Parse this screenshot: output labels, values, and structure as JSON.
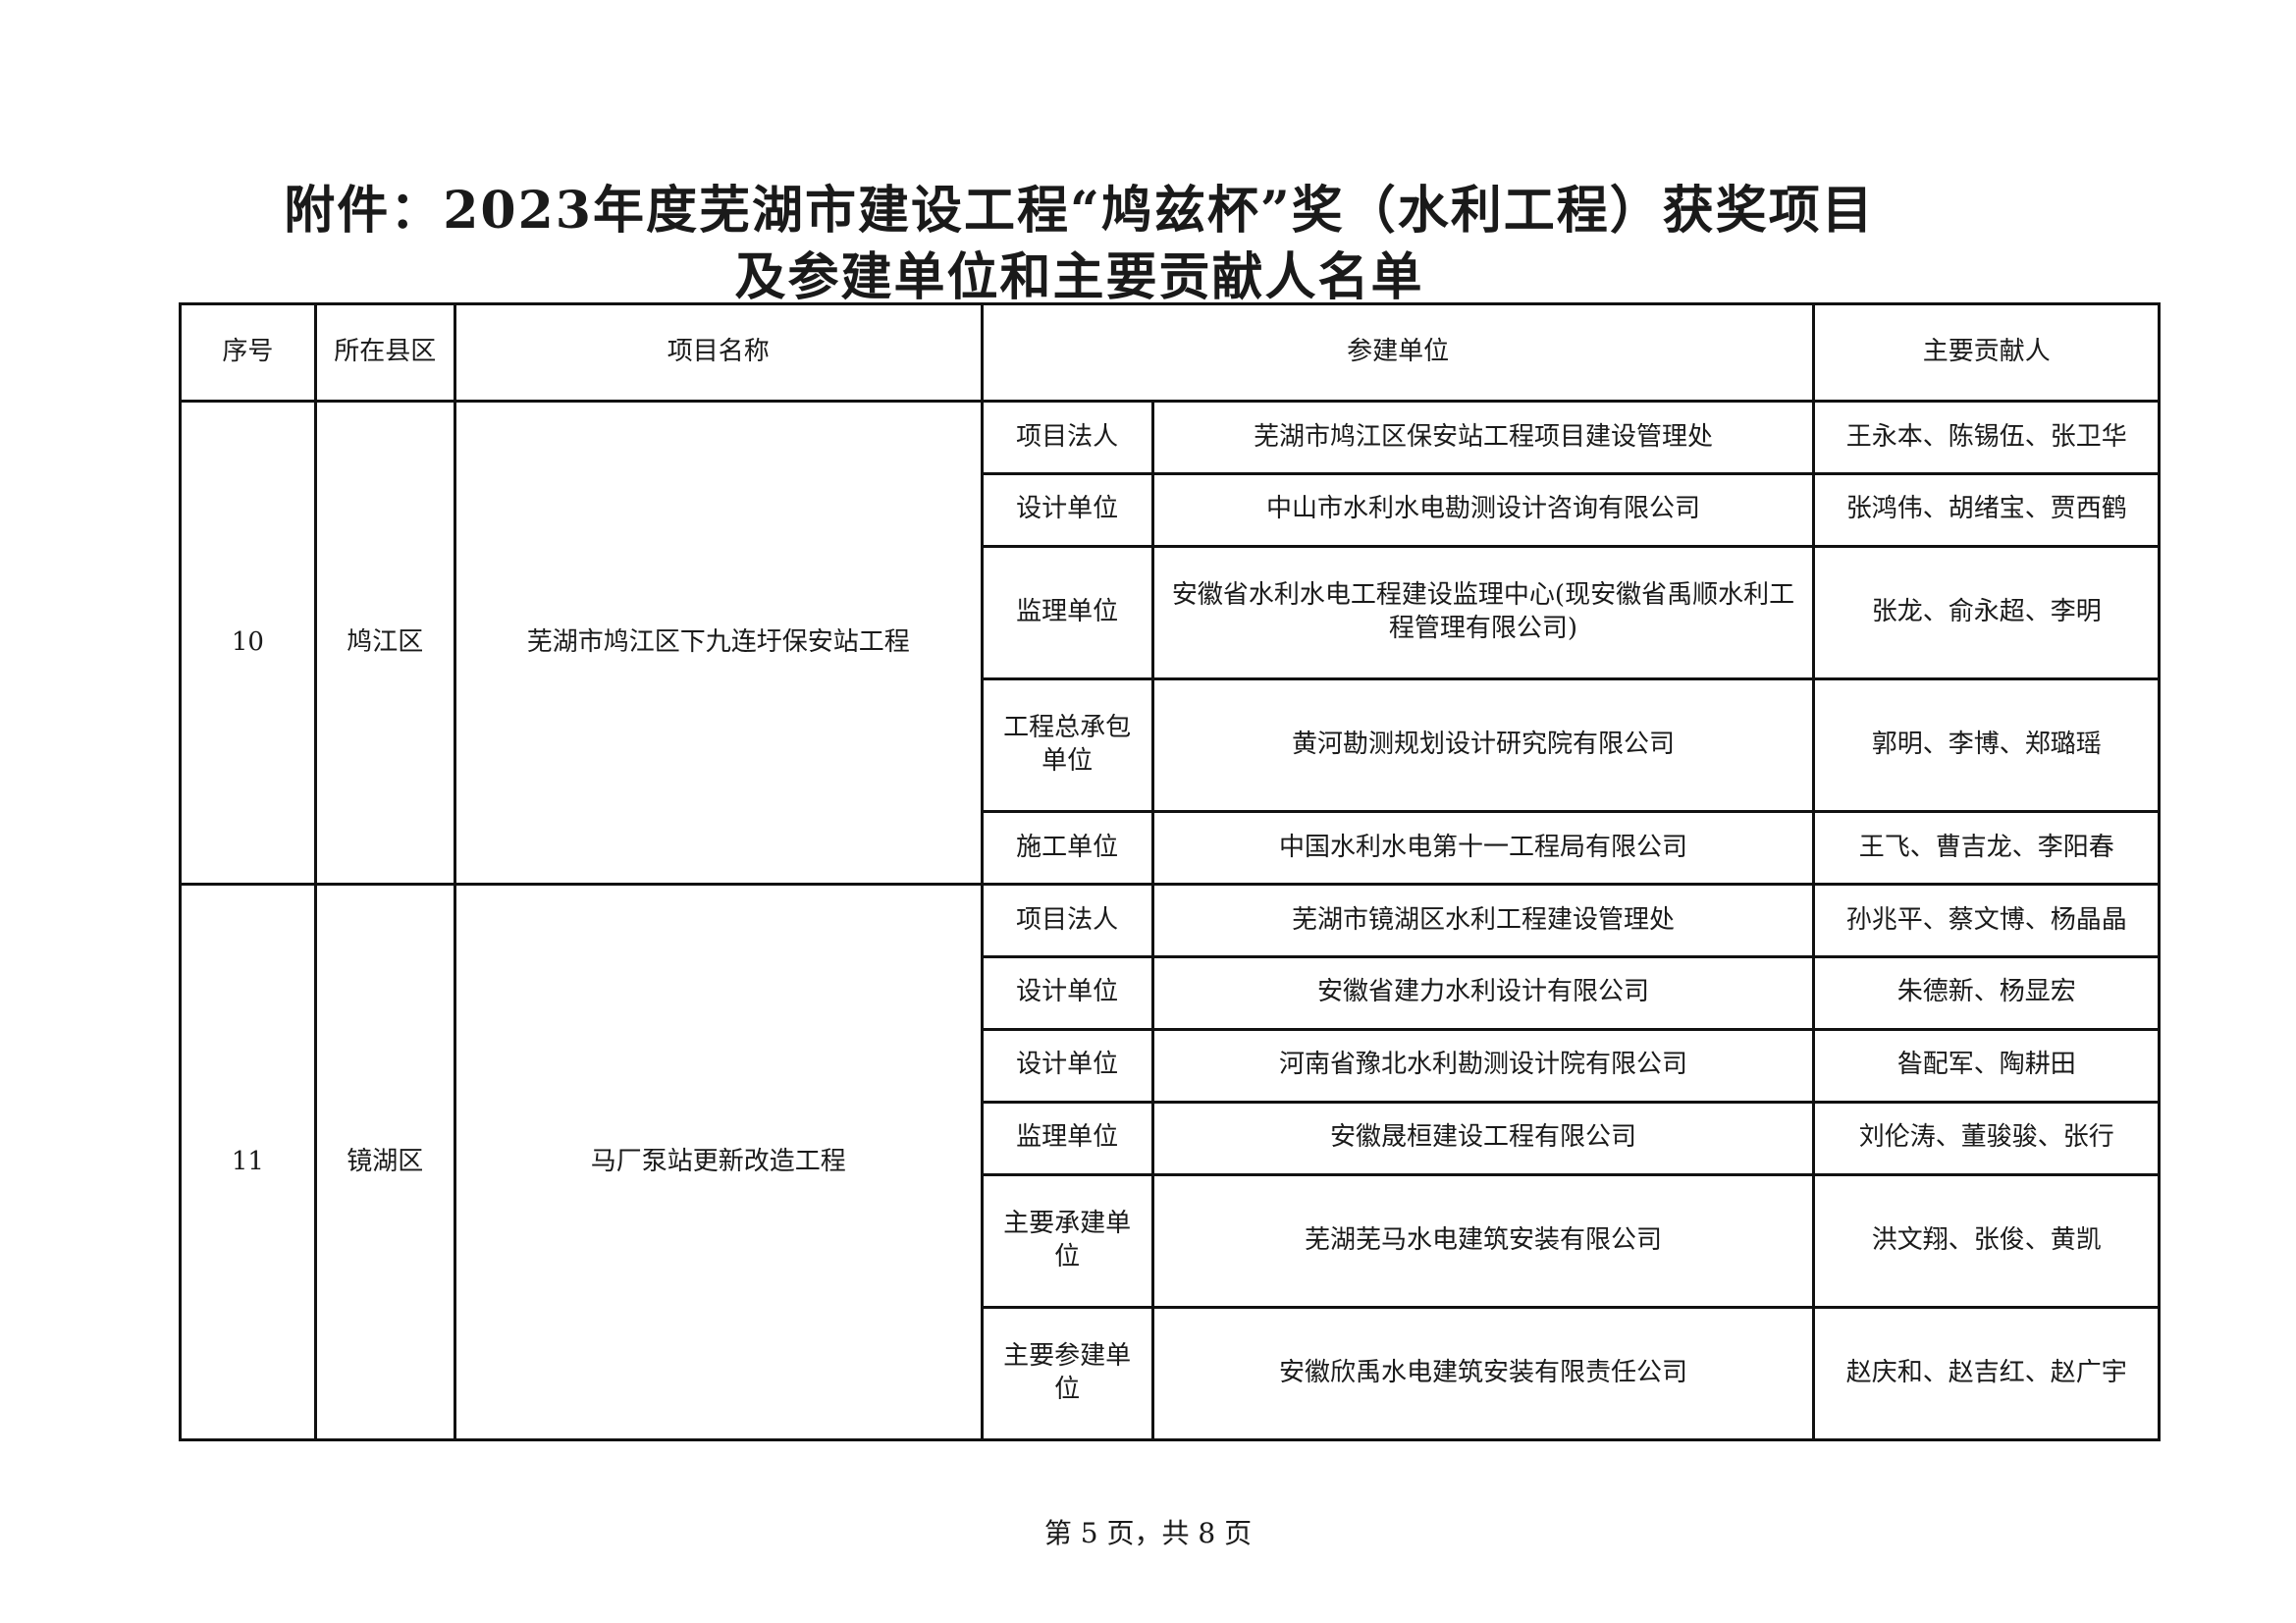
{
  "title": {
    "line1": "附件：2023年度芜湖市建设工程“鸠兹杯”奖（水利工程）获奖项目",
    "line2": "及参建单位和主要贡献人名单"
  },
  "table": {
    "headers": [
      "序号",
      "所在县区",
      "项目名称",
      "参建单位",
      "主要贡献人"
    ],
    "groups": [
      {
        "no": "10",
        "district": "鸠江区",
        "project": "芜湖市鸠江区下九连圩保安站工程",
        "rows": [
          {
            "role": "项目法人",
            "unit": "芜湖市鸠江区保安站工程项目建设管理处",
            "people": "王永本、陈锡伍、张卫华"
          },
          {
            "role": "设计单位",
            "unit": "中山市水利水电勘测设计咨询有限公司",
            "people": "张鸿伟、胡绪宝、贾西鹤"
          },
          {
            "role": "监理单位",
            "unit": "安徽省水利水电工程建设监理中心(现安徽省禹顺水利工程管理有限公司)",
            "people": "张龙、俞永超、李明"
          },
          {
            "role": "工程总承包单位",
            "unit": "黄河勘测规划设计研究院有限公司",
            "people": "郭明、李博、郑璐瑶"
          },
          {
            "role": "施工单位",
            "unit": "中国水利水电第十一工程局有限公司",
            "people": "王飞、曹吉龙、李阳春"
          }
        ]
      },
      {
        "no": "11",
        "district": "镜湖区",
        "project": "马厂泵站更新改造工程",
        "rows": [
          {
            "role": "项目法人",
            "unit": "芜湖市镜湖区水利工程建设管理处",
            "people": "孙兆平、蔡文博、杨晶晶"
          },
          {
            "role": "设计单位",
            "unit": "安徽省建力水利设计有限公司",
            "people": "朱德新、杨显宏"
          },
          {
            "role": "设计单位",
            "unit": "河南省豫北水利勘测设计院有限公司",
            "people": "昝配军、陶耕田"
          },
          {
            "role": "监理单位",
            "unit": "安徽晟桓建设工程有限公司",
            "people": "刘伦涛、董骏骏、张行"
          },
          {
            "role": "主要承建单位",
            "unit": "芜湖芜马水电建筑安装有限公司",
            "people": "洪文翔、张俊、黄凯"
          },
          {
            "role": "主要参建单位",
            "unit": "安徽欣禹水电建筑安装有限责任公司",
            "people": "赵庆和、赵吉红、赵广宇"
          }
        ]
      }
    ]
  },
  "footer": {
    "page_text": "第 5 页，共 8 页"
  }
}
